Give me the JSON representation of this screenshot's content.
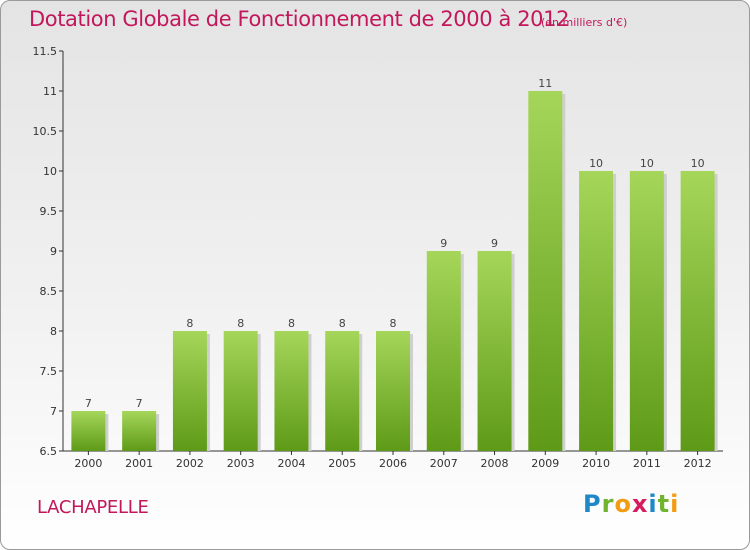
{
  "header": {
    "title": "Dotation Globale de Fonctionnement de 2000 à 2012",
    "subtitle": "(en milliers d'€)"
  },
  "commune": "LACHAPELLE",
  "brand": {
    "letters": [
      "P",
      "r",
      "o",
      "x",
      "i",
      "t",
      "i"
    ],
    "colors": [
      "#1e88c9",
      "#6fb32e",
      "#f39c12",
      "#d81b60",
      "#1e88c9",
      "#6fb32e",
      "#f39c12"
    ]
  },
  "colors": {
    "bar_light": "#a5d65a",
    "bar_dark": "#5e9a17",
    "text_accent": "#c2185b"
  },
  "chart_data": {
    "type": "bar",
    "title": "Dotation Globale de Fonctionnement de 2000 à 2012",
    "subtitle": "(en milliers d'€)",
    "categories": [
      "2000",
      "2001",
      "2002",
      "2003",
      "2004",
      "2005",
      "2006",
      "2007",
      "2008",
      "2009",
      "2010",
      "2011",
      "2012"
    ],
    "values": [
      7,
      7,
      8,
      8,
      8,
      8,
      8,
      9,
      9,
      11,
      10,
      10,
      10
    ],
    "ylim": [
      6.5,
      11.5
    ],
    "yticks": [
      "6.5",
      "7",
      "7.5",
      "8",
      "8.5",
      "9",
      "9.5",
      "10",
      "10.5",
      "11",
      "11.5"
    ],
    "grid": false,
    "legend": "none"
  }
}
